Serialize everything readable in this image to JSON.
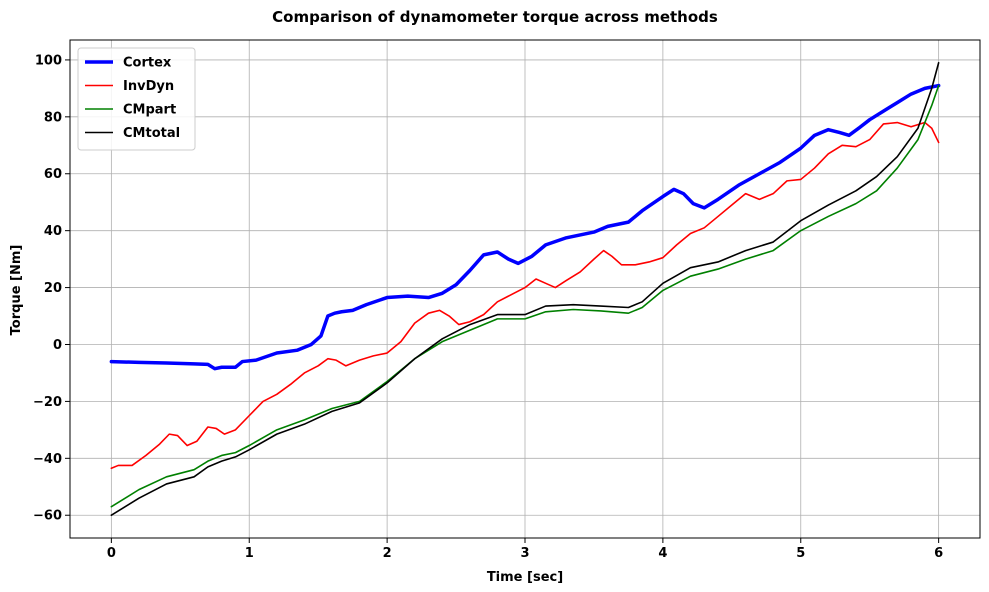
{
  "chart_data": {
    "type": "line",
    "title": "Comparison of dynamometer torque across methods",
    "xlabel": "Time [sec]",
    "ylabel": "Torque [Nm]",
    "xlim": [
      -0.3,
      6.3
    ],
    "ylim": [
      -68,
      107
    ],
    "xticks": [
      0,
      1,
      2,
      3,
      4,
      5,
      6
    ],
    "yticks": [
      -60,
      -40,
      -20,
      0,
      20,
      40,
      60,
      80,
      100
    ],
    "ytick_labels": [
      "−60",
      "−40",
      "−20",
      "0",
      "20",
      "40",
      "60",
      "80",
      "100"
    ],
    "grid": true,
    "legend_position": "top-left",
    "series": [
      {
        "name": "Cortex",
        "color": "#0000ff",
        "linewidth": 3.5,
        "points": [
          [
            0,
            -6
          ],
          [
            0.2,
            -6.3
          ],
          [
            0.4,
            -6.5
          ],
          [
            0.6,
            -6.8
          ],
          [
            0.7,
            -7
          ],
          [
            0.75,
            -8.5
          ],
          [
            0.8,
            -8
          ],
          [
            0.9,
            -8
          ],
          [
            0.95,
            -6
          ],
          [
            1.05,
            -5.5
          ],
          [
            1.2,
            -3
          ],
          [
            1.35,
            -2
          ],
          [
            1.45,
            0
          ],
          [
            1.52,
            3
          ],
          [
            1.57,
            10
          ],
          [
            1.62,
            11
          ],
          [
            1.67,
            11.5
          ],
          [
            1.75,
            12
          ],
          [
            1.85,
            14
          ],
          [
            2,
            16.5
          ],
          [
            2.15,
            17
          ],
          [
            2.3,
            16.5
          ],
          [
            2.4,
            18
          ],
          [
            2.5,
            21
          ],
          [
            2.6,
            26
          ],
          [
            2.7,
            31.5
          ],
          [
            2.8,
            32.5
          ],
          [
            2.88,
            30
          ],
          [
            2.95,
            28.5
          ],
          [
            3.05,
            31
          ],
          [
            3.15,
            35
          ],
          [
            3.3,
            37.5
          ],
          [
            3.5,
            39.5
          ],
          [
            3.6,
            41.5
          ],
          [
            3.75,
            43
          ],
          [
            3.85,
            47
          ],
          [
            4,
            52
          ],
          [
            4.08,
            54.5
          ],
          [
            4.15,
            53
          ],
          [
            4.22,
            49.5
          ],
          [
            4.3,
            48
          ],
          [
            4.4,
            51
          ],
          [
            4.55,
            56
          ],
          [
            4.7,
            60
          ],
          [
            4.85,
            64
          ],
          [
            5,
            69
          ],
          [
            5.1,
            73.5
          ],
          [
            5.2,
            75.5
          ],
          [
            5.28,
            74.5
          ],
          [
            5.35,
            73.5
          ],
          [
            5.42,
            76
          ],
          [
            5.5,
            79
          ],
          [
            5.6,
            82
          ],
          [
            5.7,
            85
          ],
          [
            5.8,
            88
          ],
          [
            5.9,
            90
          ],
          [
            6,
            91
          ]
        ]
      },
      {
        "name": "InvDyn",
        "color": "#ff0000",
        "linewidth": 1.6,
        "points": [
          [
            0,
            -43.5
          ],
          [
            0.05,
            -42.5
          ],
          [
            0.15,
            -42.5
          ],
          [
            0.25,
            -39
          ],
          [
            0.35,
            -35
          ],
          [
            0.42,
            -31.5
          ],
          [
            0.48,
            -32
          ],
          [
            0.55,
            -35.5
          ],
          [
            0.62,
            -34
          ],
          [
            0.7,
            -29
          ],
          [
            0.76,
            -29.5
          ],
          [
            0.82,
            -31.5
          ],
          [
            0.9,
            -30
          ],
          [
            1,
            -25
          ],
          [
            1.1,
            -20
          ],
          [
            1.2,
            -17.5
          ],
          [
            1.3,
            -14
          ],
          [
            1.4,
            -10
          ],
          [
            1.5,
            -7.5
          ],
          [
            1.57,
            -5
          ],
          [
            1.63,
            -5.5
          ],
          [
            1.7,
            -7.5
          ],
          [
            1.8,
            -5.5
          ],
          [
            1.9,
            -4
          ],
          [
            2,
            -3
          ],
          [
            2.1,
            1
          ],
          [
            2.2,
            7.5
          ],
          [
            2.3,
            11
          ],
          [
            2.38,
            12
          ],
          [
            2.45,
            10
          ],
          [
            2.52,
            7
          ],
          [
            2.6,
            8
          ],
          [
            2.7,
            10.5
          ],
          [
            2.8,
            15
          ],
          [
            2.9,
            17.5
          ],
          [
            3,
            20
          ],
          [
            3.08,
            23
          ],
          [
            3.15,
            21.5
          ],
          [
            3.22,
            20
          ],
          [
            3.3,
            22.5
          ],
          [
            3.4,
            25.5
          ],
          [
            3.5,
            30
          ],
          [
            3.57,
            33
          ],
          [
            3.63,
            31
          ],
          [
            3.7,
            28
          ],
          [
            3.8,
            28
          ],
          [
            3.9,
            29
          ],
          [
            4,
            30.5
          ],
          [
            4.1,
            35
          ],
          [
            4.2,
            39
          ],
          [
            4.3,
            41
          ],
          [
            4.4,
            45
          ],
          [
            4.5,
            49
          ],
          [
            4.6,
            53
          ],
          [
            4.7,
            51
          ],
          [
            4.8,
            53
          ],
          [
            4.9,
            57.5
          ],
          [
            5,
            58
          ],
          [
            5.1,
            62
          ],
          [
            5.2,
            67
          ],
          [
            5.3,
            70
          ],
          [
            5.4,
            69.5
          ],
          [
            5.5,
            72
          ],
          [
            5.6,
            77.5
          ],
          [
            5.7,
            78
          ],
          [
            5.8,
            76.5
          ],
          [
            5.9,
            78
          ],
          [
            5.95,
            76
          ],
          [
            6,
            71
          ]
        ]
      },
      {
        "name": "CMpart",
        "color": "#008000",
        "linewidth": 1.6,
        "points": [
          [
            0,
            -57
          ],
          [
            0.2,
            -51
          ],
          [
            0.4,
            -46.5
          ],
          [
            0.6,
            -44
          ],
          [
            0.7,
            -41
          ],
          [
            0.8,
            -39
          ],
          [
            0.9,
            -38
          ],
          [
            1,
            -35.5
          ],
          [
            1.2,
            -30
          ],
          [
            1.4,
            -26.5
          ],
          [
            1.6,
            -22.5
          ],
          [
            1.8,
            -20
          ],
          [
            2,
            -13
          ],
          [
            2.2,
            -5
          ],
          [
            2.4,
            1
          ],
          [
            2.6,
            5
          ],
          [
            2.8,
            9
          ],
          [
            3,
            9
          ],
          [
            3.15,
            11.5
          ],
          [
            3.35,
            12.3
          ],
          [
            3.55,
            11.8
          ],
          [
            3.75,
            11
          ],
          [
            3.85,
            13
          ],
          [
            4,
            19
          ],
          [
            4.2,
            24
          ],
          [
            4.4,
            26.5
          ],
          [
            4.6,
            30
          ],
          [
            4.8,
            33
          ],
          [
            5,
            40
          ],
          [
            5.2,
            45
          ],
          [
            5.4,
            49.5
          ],
          [
            5.55,
            54
          ],
          [
            5.7,
            62
          ],
          [
            5.85,
            72
          ],
          [
            5.95,
            84
          ],
          [
            6,
            91
          ]
        ]
      },
      {
        "name": "CMtotal",
        "color": "#000000",
        "linewidth": 1.6,
        "points": [
          [
            0,
            -60
          ],
          [
            0.2,
            -54
          ],
          [
            0.4,
            -49
          ],
          [
            0.6,
            -46.5
          ],
          [
            0.7,
            -43
          ],
          [
            0.8,
            -41
          ],
          [
            0.9,
            -39.5
          ],
          [
            1,
            -37
          ],
          [
            1.2,
            -31.5
          ],
          [
            1.4,
            -28
          ],
          [
            1.6,
            -23.5
          ],
          [
            1.8,
            -20.5
          ],
          [
            2,
            -13.5
          ],
          [
            2.2,
            -5
          ],
          [
            2.4,
            2
          ],
          [
            2.6,
            7
          ],
          [
            2.8,
            10.5
          ],
          [
            3,
            10.5
          ],
          [
            3.15,
            13.5
          ],
          [
            3.35,
            14
          ],
          [
            3.55,
            13.5
          ],
          [
            3.75,
            13
          ],
          [
            3.85,
            15
          ],
          [
            4,
            21.5
          ],
          [
            4.2,
            27
          ],
          [
            4.4,
            29
          ],
          [
            4.6,
            33
          ],
          [
            4.8,
            36
          ],
          [
            5,
            43.5
          ],
          [
            5.2,
            49
          ],
          [
            5.4,
            54
          ],
          [
            5.55,
            59
          ],
          [
            5.7,
            66
          ],
          [
            5.85,
            76
          ],
          [
            5.95,
            90
          ],
          [
            6,
            99
          ]
        ]
      }
    ]
  }
}
